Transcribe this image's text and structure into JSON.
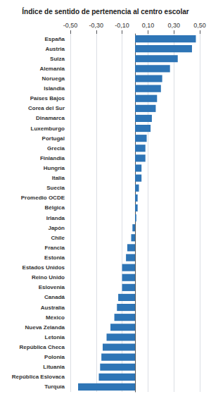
{
  "chart_data": {
    "type": "bar",
    "orientation": "horizontal",
    "title": "Índice de sentido de pertenencia al centro escolar",
    "categories": [
      "España",
      "Austria",
      "Suiza",
      "Alemania",
      "Noruega",
      "Islandia",
      "Países Bajos",
      "Corea del Sur",
      "Dinamarca",
      "Luxemburgo",
      "Portugal",
      "Grecia",
      "Finlandia",
      "Hungría",
      "Italia",
      "Suecia",
      "Promedio OCDE",
      "Bélgica",
      "Irlanda",
      "Japón",
      "Chile",
      "Francia",
      "Estonia",
      "Estados Unidos",
      "Reino Unido",
      "Eslovenia",
      "Canadá",
      "Australia",
      "México",
      "Nueva Zelanda",
      "Letonia",
      "República Checa",
      "Polonia",
      "Lituania",
      "República Eslovaca",
      "Turquía"
    ],
    "values": [
      0.47,
      0.44,
      0.33,
      0.27,
      0.21,
      0.2,
      0.17,
      0.16,
      0.13,
      0.12,
      0.09,
      0.08,
      0.08,
      0.05,
      0.05,
      0.03,
      0.02,
      0.02,
      0.01,
      -0.02,
      -0.03,
      -0.06,
      -0.07,
      -0.1,
      -0.1,
      -0.1,
      -0.13,
      -0.14,
      -0.16,
      -0.19,
      -0.22,
      -0.25,
      -0.26,
      -0.27,
      -0.28,
      -0.44
    ],
    "color": "#2E75B6",
    "xlim": [
      -0.5,
      0.5
    ],
    "xticks": [
      {
        "value": -0.5,
        "label": "-0,50"
      },
      {
        "value": -0.3,
        "label": "-0,30"
      },
      {
        "value": -0.1,
        "label": "-0,10"
      },
      {
        "value": 0.1,
        "label": "0,10"
      },
      {
        "value": 0.3,
        "label": "0,30"
      },
      {
        "value": 0.5,
        "label": "0,50"
      }
    ],
    "grid": true
  }
}
